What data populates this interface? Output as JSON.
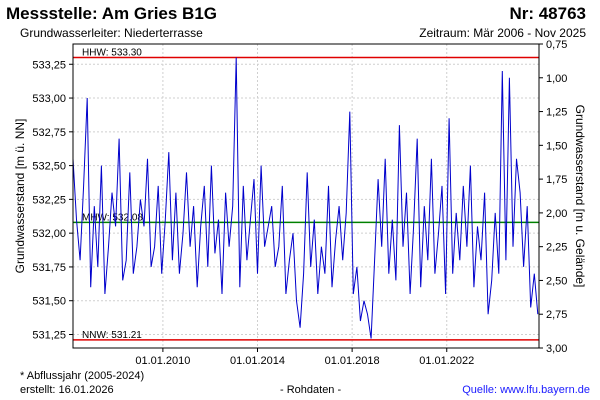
{
  "header": {
    "title": "Messstelle: Am Gries B1G",
    "number": "Nr: 48763",
    "aquifer": "Grundwasserleiter:   Niederterrasse",
    "period": "Zeitraum: Mär 2006 - Nov 2025"
  },
  "footer": {
    "footnote": "* Abflussjahr (2005-2024)",
    "created": "erstellt:  16.01.2026",
    "raw": "- Rohdaten -",
    "source": "Quelle:  www.lfu.bayern.de"
  },
  "chart_data": {
    "type": "line",
    "ylabel": "Grundwasserstand [m ü. NN]",
    "ylabel_right": "Grundwasserstand [m u. Gelände]",
    "ylim": [
      531.15,
      533.4
    ],
    "ylim_right": [
      3.0,
      0.75
    ],
    "xlim": [
      2006.2,
      2025.9
    ],
    "y_ticks": [
      "531,25",
      "531,50",
      "531,75",
      "532,00",
      "532,25",
      "532,50",
      "532,75",
      "533,00",
      "533,25"
    ],
    "y_tick_values": [
      531.25,
      531.5,
      531.75,
      532.0,
      532.25,
      532.5,
      532.75,
      533.0,
      533.25
    ],
    "y_ticks_right": [
      "0,75",
      "1,00",
      "1,25",
      "1,50",
      "1,75",
      "2,00",
      "2,25",
      "2,50",
      "2,75",
      "3,00"
    ],
    "y_tick_values_right": [
      0.75,
      1.0,
      1.25,
      1.5,
      1.75,
      2.0,
      2.25,
      2.5,
      2.75,
      3.0
    ],
    "x_ticks": [
      "01.01.2010",
      "01.01.2014",
      "01.01.2018",
      "01.01.2022"
    ],
    "x_tick_values": [
      2010.0,
      2014.0,
      2018.0,
      2022.0
    ],
    "grid": true,
    "reference_lines": [
      {
        "label": "HHW: 533.30",
        "value": 533.3,
        "color": "#e00000"
      },
      {
        "label": "MHW: 532.08",
        "value": 532.08,
        "color": "#008000"
      },
      {
        "label": "NNW: 531.21",
        "value": 531.21,
        "color": "#e00000"
      }
    ],
    "series": [
      {
        "color": "#0000cc",
        "x": [
          2006.2,
          2006.35,
          2006.5,
          2006.65,
          2006.8,
          2006.95,
          2007.1,
          2007.25,
          2007.4,
          2007.55,
          2007.7,
          2007.85,
          2008.0,
          2008.15,
          2008.3,
          2008.45,
          2008.6,
          2008.75,
          2008.9,
          2009.05,
          2009.2,
          2009.35,
          2009.5,
          2009.65,
          2009.8,
          2009.95,
          2010.1,
          2010.25,
          2010.4,
          2010.55,
          2010.7,
          2010.85,
          2011.0,
          2011.15,
          2011.3,
          2011.45,
          2011.6,
          2011.75,
          2011.9,
          2012.05,
          2012.2,
          2012.35,
          2012.5,
          2012.65,
          2012.8,
          2012.95,
          2013.1,
          2013.25,
          2013.4,
          2013.55,
          2013.7,
          2013.85,
          2014.0,
          2014.15,
          2014.3,
          2014.45,
          2014.6,
          2014.75,
          2014.9,
          2015.05,
          2015.2,
          2015.35,
          2015.5,
          2015.65,
          2015.8,
          2015.95,
          2016.1,
          2016.25,
          2016.4,
          2016.55,
          2016.7,
          2016.85,
          2017.0,
          2017.15,
          2017.3,
          2017.45,
          2017.6,
          2017.75,
          2017.9,
          2018.05,
          2018.2,
          2018.35,
          2018.5,
          2018.65,
          2018.8,
          2018.95,
          2019.1,
          2019.25,
          2019.4,
          2019.55,
          2019.7,
          2019.85,
          2020.0,
          2020.15,
          2020.3,
          2020.45,
          2020.6,
          2020.75,
          2020.9,
          2021.05,
          2021.2,
          2021.35,
          2021.5,
          2021.65,
          2021.8,
          2021.95,
          2022.1,
          2022.25,
          2022.4,
          2022.55,
          2022.7,
          2022.85,
          2023.0,
          2023.15,
          2023.3,
          2023.45,
          2023.6,
          2023.75,
          2023.9,
          2024.05,
          2024.2,
          2024.35,
          2024.5,
          2024.65,
          2024.8,
          2024.95,
          2025.1,
          2025.25,
          2025.4,
          2025.55,
          2025.7,
          2025.85
        ],
        "y": [
          532.55,
          532.1,
          531.8,
          532.35,
          533.0,
          531.6,
          532.2,
          531.75,
          532.5,
          531.55,
          531.9,
          532.3,
          532.05,
          532.7,
          531.65,
          531.8,
          532.45,
          531.7,
          531.9,
          532.25,
          532.05,
          532.55,
          531.75,
          531.9,
          532.35,
          531.7,
          532.1,
          532.6,
          531.8,
          532.3,
          531.7,
          532.0,
          532.45,
          531.9,
          532.2,
          531.6,
          532.05,
          532.35,
          531.75,
          532.5,
          531.85,
          532.1,
          531.55,
          532.3,
          531.9,
          532.2,
          533.3,
          531.6,
          532.35,
          531.8,
          532.1,
          532.4,
          531.7,
          532.5,
          531.9,
          532.05,
          532.2,
          531.75,
          531.9,
          532.35,
          531.55,
          531.8,
          532.0,
          531.5,
          531.3,
          531.7,
          532.45,
          531.75,
          532.1,
          531.55,
          531.9,
          531.7,
          532.35,
          531.6,
          531.95,
          532.2,
          531.8,
          532.15,
          532.9,
          531.55,
          531.75,
          531.35,
          531.5,
          531.4,
          531.22,
          531.8,
          532.4,
          531.9,
          532.55,
          531.7,
          532.1,
          531.65,
          532.8,
          531.9,
          532.3,
          531.55,
          532.05,
          532.7,
          531.6,
          532.2,
          531.8,
          532.55,
          531.7,
          532.0,
          532.35,
          531.55,
          532.85,
          531.7,
          532.15,
          531.8,
          532.35,
          531.9,
          532.5,
          531.6,
          532.05,
          531.8,
          532.3,
          531.4,
          531.65,
          532.15,
          531.7,
          533.2,
          531.8,
          533.15,
          531.9,
          532.55,
          532.3,
          531.75,
          532.2,
          531.45,
          531.7,
          531.4
        ]
      }
    ]
  }
}
